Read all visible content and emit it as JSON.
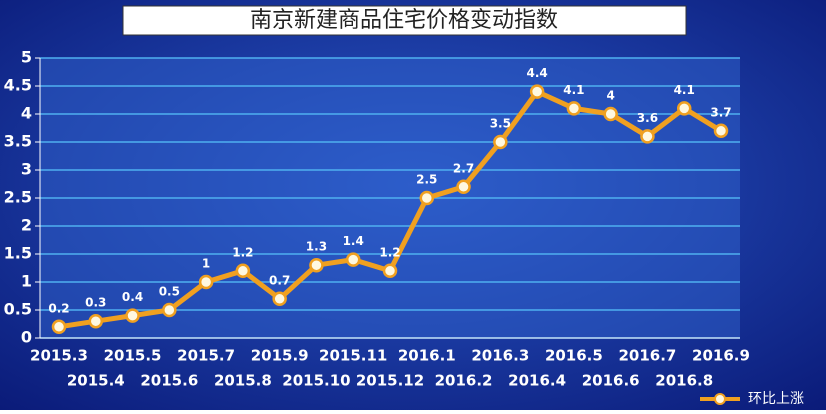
{
  "chart_data": {
    "type": "line",
    "title": "南京新建商品住宅价格变动指数",
    "categories": [
      "2015.3",
      "2015.4",
      "2015.5",
      "2015.6",
      "2015.7",
      "2015.8",
      "2015.9",
      "2015.10",
      "2015.11",
      "2015.12",
      "2016.1",
      "2016.2",
      "2016.3",
      "2016.4",
      "2016.5",
      "2016.6",
      "2016.7",
      "2016.8",
      "2016.9"
    ],
    "series": [
      {
        "name": "环比上涨",
        "color": "#f0a020",
        "values": [
          0.2,
          0.3,
          0.4,
          0.5,
          1,
          1.2,
          0.7,
          1.3,
          1.4,
          1.2,
          2.5,
          2.7,
          3.5,
          4.4,
          4.1,
          4,
          3.6,
          4.1,
          3.7
        ]
      }
    ],
    "ylim": [
      0,
      5
    ],
    "yticks": [
      0,
      0.5,
      1,
      1.5,
      2,
      2.5,
      3,
      3.5,
      4,
      4.5,
      5
    ],
    "grid": true,
    "legend": "bottom-right"
  }
}
